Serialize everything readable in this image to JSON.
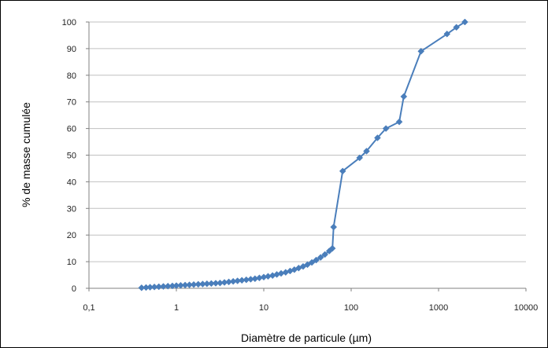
{
  "chart_data": {
    "type": "line",
    "xlabel": "Diamètre de particule (µm)",
    "ylabel": "% de masse cumulée",
    "x_scale": "log",
    "xlim": [
      0.1,
      10000
    ],
    "ylim": [
      0,
      100
    ],
    "x_ticks": [
      0.1,
      1,
      10,
      100,
      1000,
      10000
    ],
    "x_tick_labels": [
      "0,1",
      "1",
      "10",
      "100",
      "1000",
      "10000"
    ],
    "y_ticks": [
      0,
      10,
      20,
      30,
      40,
      50,
      60,
      70,
      80,
      90,
      100
    ],
    "y_tick_labels": [
      "0",
      "10",
      "20",
      "30",
      "40",
      "50",
      "60",
      "70",
      "80",
      "90",
      "100"
    ],
    "grid": "horizontal",
    "legend": "none",
    "series": [
      {
        "color": "#4a7ebb",
        "marker": "diamond",
        "points": [
          [
            0.4,
            0.2
          ],
          [
            0.45,
            0.3
          ],
          [
            0.5,
            0.4
          ],
          [
            0.56,
            0.5
          ],
          [
            0.63,
            0.6
          ],
          [
            0.71,
            0.7
          ],
          [
            0.8,
            0.8
          ],
          [
            0.9,
            0.9
          ],
          [
            1.0,
            1.0
          ],
          [
            1.12,
            1.1
          ],
          [
            1.26,
            1.2
          ],
          [
            1.41,
            1.3
          ],
          [
            1.58,
            1.4
          ],
          [
            1.78,
            1.5
          ],
          [
            2.0,
            1.6
          ],
          [
            2.24,
            1.7
          ],
          [
            2.51,
            1.8
          ],
          [
            2.82,
            1.9
          ],
          [
            3.16,
            2.0
          ],
          [
            3.55,
            2.2
          ],
          [
            3.98,
            2.4
          ],
          [
            4.47,
            2.6
          ],
          [
            5.01,
            2.8
          ],
          [
            5.62,
            3.0
          ],
          [
            6.31,
            3.2
          ],
          [
            7.08,
            3.4
          ],
          [
            7.94,
            3.6
          ],
          [
            8.91,
            3.9
          ],
          [
            10.0,
            4.2
          ],
          [
            11.2,
            4.5
          ],
          [
            12.6,
            4.8
          ],
          [
            14.1,
            5.2
          ],
          [
            15.8,
            5.6
          ],
          [
            17.8,
            6.0
          ],
          [
            20.0,
            6.5
          ],
          [
            22.4,
            7.0
          ],
          [
            25.1,
            7.6
          ],
          [
            28.2,
            8.2
          ],
          [
            31.6,
            8.9
          ],
          [
            35.5,
            9.7
          ],
          [
            39.8,
            10.6
          ],
          [
            44.7,
            11.6
          ],
          [
            50.1,
            12.7
          ],
          [
            56.2,
            14.0
          ],
          [
            61.0,
            15.0
          ],
          [
            63.0,
            23.0
          ],
          [
            80.0,
            44.0
          ],
          [
            125,
            49.0
          ],
          [
            150,
            51.5
          ],
          [
            200,
            56.5
          ],
          [
            250,
            60.0
          ],
          [
            355,
            62.5
          ],
          [
            400,
            72.0
          ],
          [
            630,
            89.0
          ],
          [
            1250,
            95.5
          ],
          [
            1600,
            98.0
          ],
          [
            2000,
            100.0
          ]
        ]
      }
    ]
  }
}
